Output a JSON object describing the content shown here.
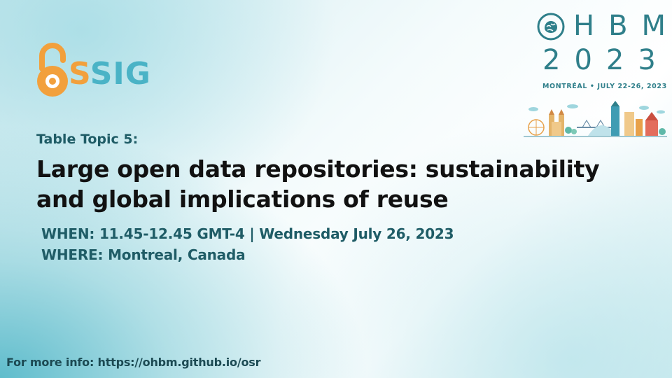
{
  "logos": {
    "ossig": {
      "letters_first": "S",
      "letters_rest": "SIG",
      "icon": "open-access-lock-icon",
      "colors": {
        "orange": "#f2a03c",
        "teal": "#4ab3c6"
      }
    },
    "ohbm": {
      "line1": "HBM",
      "line2": "2023",
      "subtitle": "MONTRÉAL • JULY 22-26, 2023",
      "icon": "brain-icon",
      "illustration": "montreal-skyline-illustration",
      "color": "#2f7f8a"
    }
  },
  "content": {
    "topic": "Table Topic 5:",
    "title": "Large open data repositories: sustainability and global implications of reuse",
    "when": "WHEN: 11.45-12.45 GMT-4 | Wednesday July 26, 2023",
    "where": "WHERE: Montreal, Canada"
  },
  "footer": {
    "more_info": "For more info: https://ohbm.github.io/osr"
  },
  "colors": {
    "heading_teal": "#1f5c66",
    "title_black": "#111111",
    "background_teal": "#46b2c4"
  }
}
